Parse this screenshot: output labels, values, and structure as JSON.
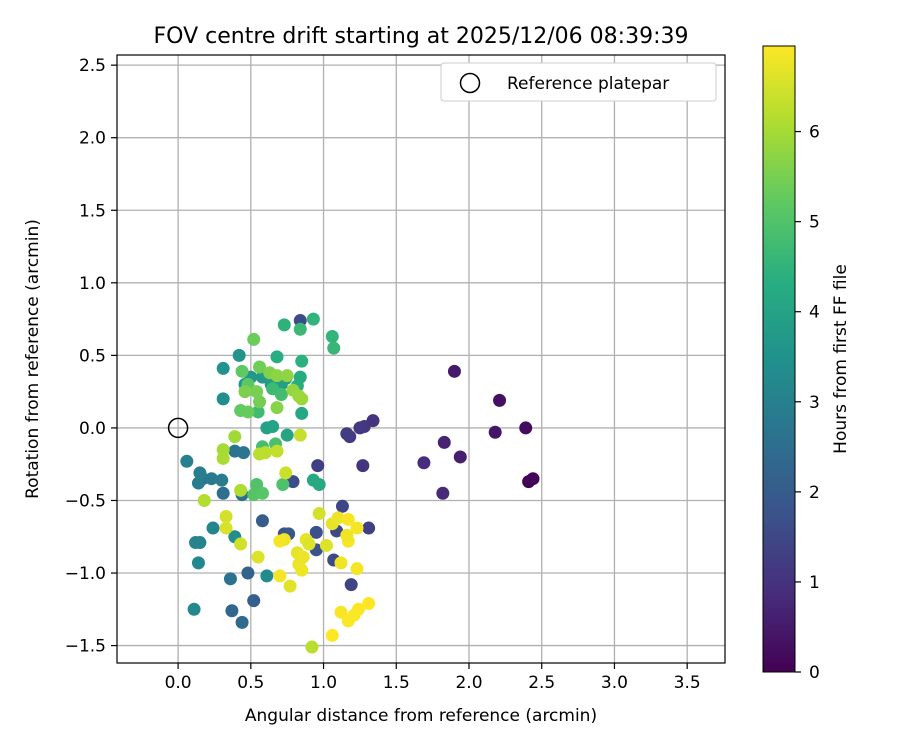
{
  "chart_data": {
    "type": "scatter",
    "title": "FOV centre drift starting at 2025/12/06 08:39:39",
    "xlabel": "Angular distance from reference (arcmin)",
    "ylabel": "Rotation from reference (arcmin)",
    "xlim": [
      -0.42,
      3.76
    ],
    "ylim": [
      -1.62,
      2.57
    ],
    "xticks": [
      0.0,
      0.5,
      1.0,
      1.5,
      2.0,
      2.5,
      3.0,
      3.5
    ],
    "xtick_labels": [
      "0.0",
      "0.5",
      "1.0",
      "1.5",
      "2.0",
      "2.5",
      "3.0",
      "3.5"
    ],
    "yticks": [
      -1.5,
      -1.0,
      -0.5,
      0.0,
      0.5,
      1.0,
      1.5,
      2.0,
      2.5
    ],
    "ytick_labels": [
      "−1.5",
      "−1.0",
      "−0.5",
      "0.0",
      "0.5",
      "1.0",
      "1.5",
      "2.0",
      "2.5"
    ],
    "grid": true,
    "legend": {
      "position": "upper-right",
      "entries": [
        "Reference platepar"
      ]
    },
    "reference_point": {
      "x": 0.0,
      "y": 0.0
    },
    "colorbar": {
      "label": "Hours from first FF file",
      "colormap": "viridis",
      "range": [
        0,
        6.95
      ],
      "ticks": [
        0,
        1,
        2,
        3,
        4,
        5,
        6
      ],
      "tick_labels": [
        "0",
        "1",
        "2",
        "3",
        "4",
        "5",
        "6"
      ]
    },
    "points": [
      [
        2.41,
        -0.37,
        0.05
      ],
      [
        2.44,
        -0.35,
        0.1
      ],
      [
        2.39,
        0.0,
        0.2
      ],
      [
        2.21,
        0.19,
        0.3
      ],
      [
        2.18,
        -0.03,
        0.4
      ],
      [
        1.9,
        0.39,
        0.5
      ],
      [
        1.94,
        -0.2,
        0.6
      ],
      [
        1.83,
        -0.1,
        0.7
      ],
      [
        1.82,
        -0.45,
        0.8
      ],
      [
        1.69,
        -0.24,
        0.9
      ],
      [
        1.34,
        0.05,
        1.0
      ],
      [
        1.27,
        -0.26,
        1.05
      ],
      [
        1.28,
        0.01,
        1.1
      ],
      [
        1.25,
        0.0,
        1.15
      ],
      [
        1.18,
        -0.06,
        1.2
      ],
      [
        1.16,
        -0.04,
        1.25
      ],
      [
        0.96,
        -0.26,
        1.3
      ],
      [
        1.31,
        -0.69,
        1.35
      ],
      [
        1.19,
        -1.08,
        1.4
      ],
      [
        1.13,
        -0.54,
        1.45
      ],
      [
        1.09,
        -0.71,
        1.5
      ],
      [
        1.07,
        -0.91,
        1.55
      ],
      [
        0.84,
        0.74,
        1.6
      ],
      [
        0.79,
        -0.37,
        1.65
      ],
      [
        0.95,
        -0.72,
        1.7
      ],
      [
        0.95,
        -0.84,
        1.75
      ],
      [
        0.73,
        -0.73,
        1.8
      ],
      [
        0.76,
        -0.73,
        1.9
      ],
      [
        0.58,
        -0.64,
        2.0
      ],
      [
        0.52,
        -1.19,
        2.1
      ],
      [
        0.48,
        -1.0,
        2.2
      ],
      [
        0.37,
        -1.26,
        2.3
      ],
      [
        0.44,
        -1.34,
        2.4
      ],
      [
        0.31,
        -0.45,
        2.5
      ],
      [
        0.44,
        -0.46,
        2.55
      ],
      [
        0.36,
        -1.04,
        2.6
      ],
      [
        0.39,
        -0.16,
        2.65
      ],
      [
        0.45,
        -0.17,
        2.7
      ],
      [
        0.17,
        -0.35,
        2.75
      ],
      [
        0.23,
        -0.35,
        2.8
      ],
      [
        0.3,
        -0.36,
        2.85
      ],
      [
        0.14,
        -0.38,
        2.9
      ],
      [
        0.15,
        -0.31,
        2.95
      ],
      [
        0.06,
        -0.23,
        3.0
      ],
      [
        0.15,
        -0.79,
        3.05
      ],
      [
        0.12,
        -0.79,
        3.1
      ],
      [
        0.24,
        -0.69,
        3.15
      ],
      [
        0.14,
        -0.93,
        3.2
      ],
      [
        0.11,
        -1.25,
        3.25
      ],
      [
        0.61,
        -1.02,
        3.3
      ],
      [
        0.39,
        -0.75,
        3.35
      ],
      [
        0.31,
        0.2,
        3.4
      ],
      [
        0.31,
        0.41,
        3.5
      ],
      [
        0.42,
        0.5,
        3.55
      ],
      [
        0.46,
        0.3,
        3.6
      ],
      [
        0.5,
        0.35,
        3.65
      ],
      [
        0.58,
        0.35,
        3.7
      ],
      [
        0.64,
        0.3,
        3.75
      ],
      [
        0.65,
        0.35,
        3.8
      ],
      [
        0.71,
        0.3,
        3.85
      ],
      [
        0.74,
        0.34,
        3.9
      ],
      [
        0.61,
        0.0,
        3.95
      ],
      [
        0.65,
        0.01,
        4.0
      ],
      [
        0.75,
        -0.05,
        4.05
      ],
      [
        0.85,
        0.1,
        4.1
      ],
      [
        0.93,
        -0.36,
        4.15
      ],
      [
        0.97,
        -0.39,
        4.2
      ],
      [
        0.84,
        0.35,
        4.25
      ],
      [
        0.82,
        0.29,
        4.3
      ],
      [
        0.68,
        0.49,
        4.35
      ],
      [
        0.85,
        0.46,
        4.4
      ],
      [
        0.73,
        0.71,
        4.45
      ],
      [
        0.93,
        0.75,
        4.5
      ],
      [
        1.06,
        0.63,
        4.55
      ],
      [
        1.07,
        0.55,
        4.6
      ],
      [
        0.84,
        0.68,
        4.65
      ],
      [
        0.65,
        0.27,
        4.7
      ],
      [
        0.55,
        0.11,
        4.75
      ],
      [
        0.71,
        0.23,
        4.8
      ],
      [
        0.58,
        -0.13,
        4.85
      ],
      [
        0.67,
        -0.11,
        4.9
      ],
      [
        0.72,
        -0.39,
        4.95
      ],
      [
        0.54,
        -0.39,
        5.0
      ],
      [
        0.52,
        -0.46,
        5.05
      ],
      [
        0.58,
        -0.45,
        5.1
      ],
      [
        0.48,
        0.3,
        5.15
      ],
      [
        0.44,
        0.39,
        5.2
      ],
      [
        0.43,
        0.12,
        5.25
      ],
      [
        0.48,
        0.11,
        5.3
      ],
      [
        0.52,
        0.61,
        5.35
      ],
      [
        0.56,
        0.42,
        5.4
      ],
      [
        0.56,
        0.18,
        5.45
      ],
      [
        0.54,
        0.25,
        5.5
      ],
      [
        0.46,
        0.25,
        5.55
      ],
      [
        0.63,
        0.38,
        5.6
      ],
      [
        0.68,
        0.14,
        5.65
      ],
      [
        0.68,
        0.36,
        5.7
      ],
      [
        0.75,
        0.36,
        5.75
      ],
      [
        0.79,
        0.26,
        5.8
      ],
      [
        0.83,
        0.22,
        5.85
      ],
      [
        0.85,
        0.2,
        5.9
      ],
      [
        0.39,
        -0.06,
        5.95
      ],
      [
        0.31,
        -0.15,
        6.0
      ],
      [
        0.31,
        -0.21,
        6.05
      ],
      [
        0.43,
        -0.43,
        6.1
      ],
      [
        0.18,
        -0.5,
        6.15
      ],
      [
        0.56,
        -0.18,
        6.2
      ],
      [
        0.6,
        -0.17,
        6.25
      ],
      [
        0.68,
        -0.16,
        6.3
      ],
      [
        0.84,
        -0.05,
        6.35
      ],
      [
        0.74,
        -0.31,
        6.4
      ],
      [
        0.43,
        -0.8,
        6.45
      ],
      [
        0.33,
        -0.61,
        6.5
      ],
      [
        0.33,
        -0.69,
        6.55
      ],
      [
        0.55,
        -0.89,
        6.6
      ],
      [
        0.77,
        -1.09,
        6.65
      ],
      [
        0.82,
        -0.86,
        6.7
      ],
      [
        0.83,
        -0.94,
        6.75
      ],
      [
        0.86,
        -0.89,
        6.75
      ],
      [
        0.85,
        -0.98,
        6.8
      ],
      [
        0.73,
        -0.77,
        6.8
      ],
      [
        0.7,
        -0.78,
        6.85
      ],
      [
        0.7,
        -1.02,
        6.85
      ],
      [
        0.92,
        -1.51,
        6.2
      ],
      [
        0.97,
        -0.59,
        6.5
      ],
      [
        1.02,
        -0.81,
        6.6
      ],
      [
        1.06,
        -0.66,
        6.7
      ],
      [
        1.1,
        -0.62,
        6.75
      ],
      [
        1.12,
        -0.93,
        6.8
      ],
      [
        1.23,
        -0.97,
        6.85
      ],
      [
        1.23,
        -0.69,
        6.85
      ],
      [
        1.17,
        -0.63,
        6.9
      ],
      [
        1.17,
        -0.78,
        6.9
      ],
      [
        1.12,
        -1.27,
        6.9
      ],
      [
        1.17,
        -1.33,
        6.92
      ],
      [
        1.21,
        -1.29,
        6.93
      ],
      [
        1.24,
        -1.25,
        6.94
      ],
      [
        1.31,
        -1.21,
        6.95
      ],
      [
        1.06,
        -1.43,
        6.95
      ],
      [
        0.88,
        -0.77,
        6.7
      ],
      [
        0.9,
        -0.8,
        6.6
      ],
      [
        1.16,
        -0.74,
        6.8
      ]
    ]
  }
}
